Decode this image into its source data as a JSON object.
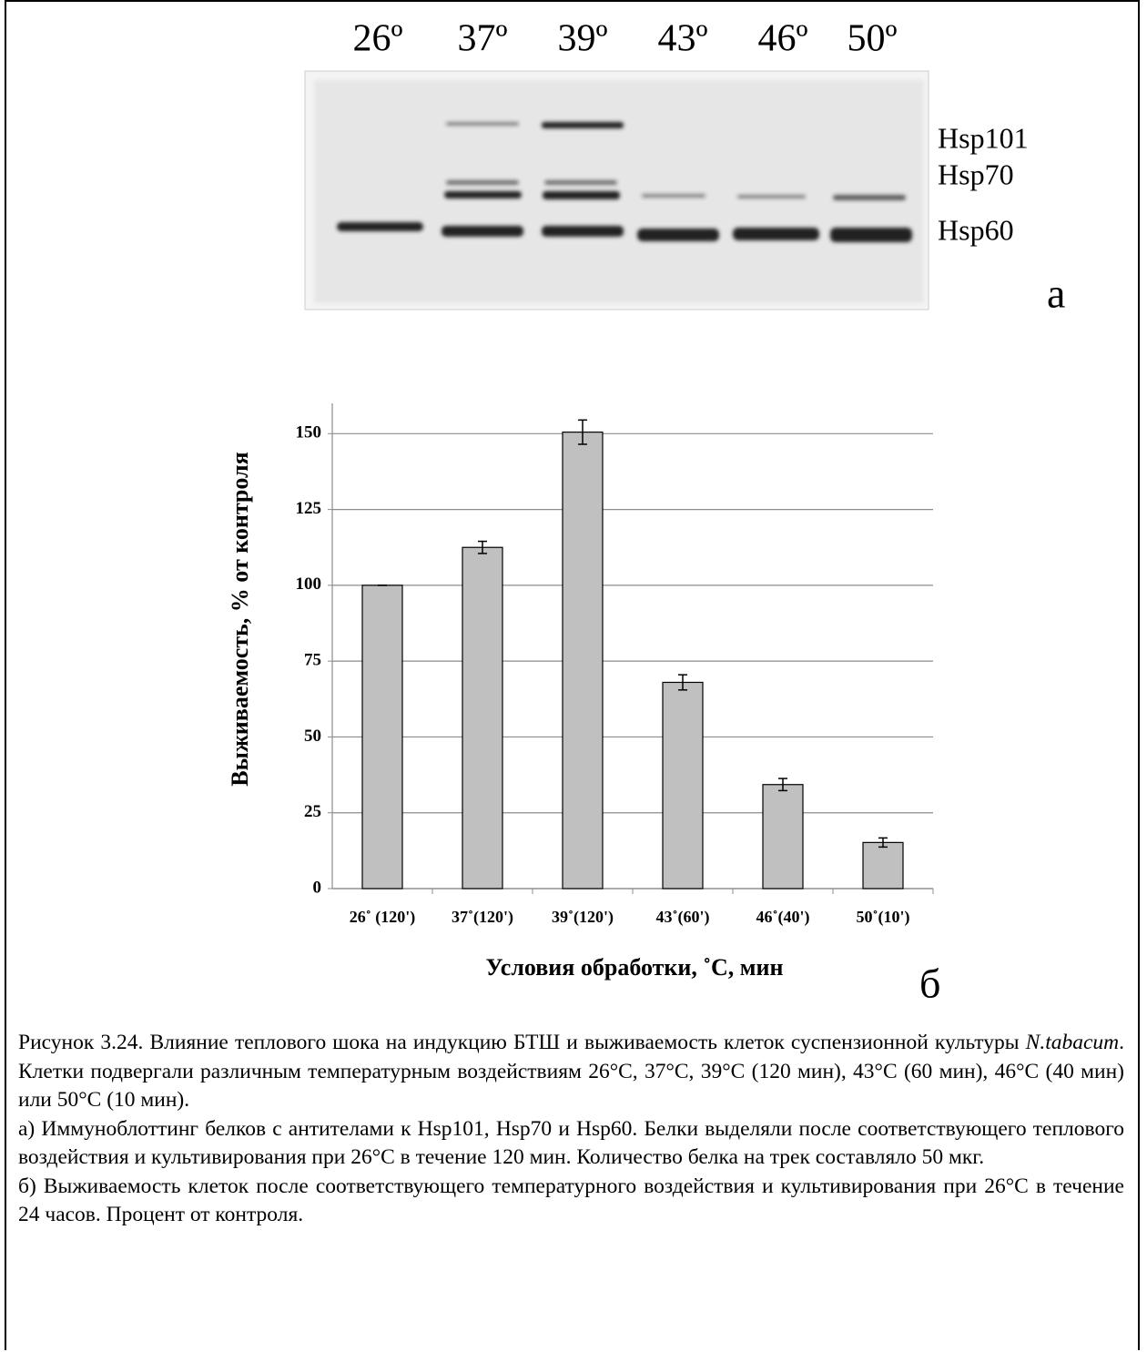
{
  "blot": {
    "lanes": [
      "26º",
      "37º",
      "39º",
      "43º",
      "46º",
      "50º"
    ],
    "bands": [
      "Hsp101",
      "Hsp70",
      "Hsp60"
    ],
    "panel_label": "а"
  },
  "chart_data": {
    "type": "bar",
    "ylabel": "Выживаемость, % от контроля",
    "xlabel": "Условия обработки, ˚С, мин",
    "panel_label": "б",
    "categories": [
      "26˚ (120')",
      "37˚(120')",
      "39˚(120')",
      "43˚(60')",
      "46˚(40')",
      "50˚(10')"
    ],
    "values": [
      100,
      112.5,
      150.5,
      68,
      34.3,
      15.2
    ],
    "errors": [
      0,
      2,
      4,
      2.5,
      2,
      1.5
    ],
    "color": "#c0c0c0",
    "ylim": [
      0,
      160
    ],
    "yticks": [
      0,
      25,
      50,
      75,
      100,
      125,
      150
    ],
    "grid": true
  },
  "caption": {
    "p1": [
      "Рисунок 3.24. Влияние теплового шока на индукцию БТШ и выживаемость клеток суспензионной культуры ",
      "N.tabacum",
      ". Клетки подвергали различным температурным воздействиям 26°С, 37°С, 39°С (120 мин), 43°С (60 мин), 46°С (40 мин) или 50°С (10 мин)."
    ],
    "p2": "а) Иммуноблоттинг белков с антителами к Hsp101, Hsp70 и Hsp60. Белки выделяли после соответствующего теплового воздействия и культивирования при 26°С в течение 120 мин. Количество белка на трек составляло 50 мкг.",
    "p3": "б) Выживаемость клеток после соответствующего температурного воздействия и культивирования при 26°С в течение 24 часов. Процент от контроля."
  }
}
